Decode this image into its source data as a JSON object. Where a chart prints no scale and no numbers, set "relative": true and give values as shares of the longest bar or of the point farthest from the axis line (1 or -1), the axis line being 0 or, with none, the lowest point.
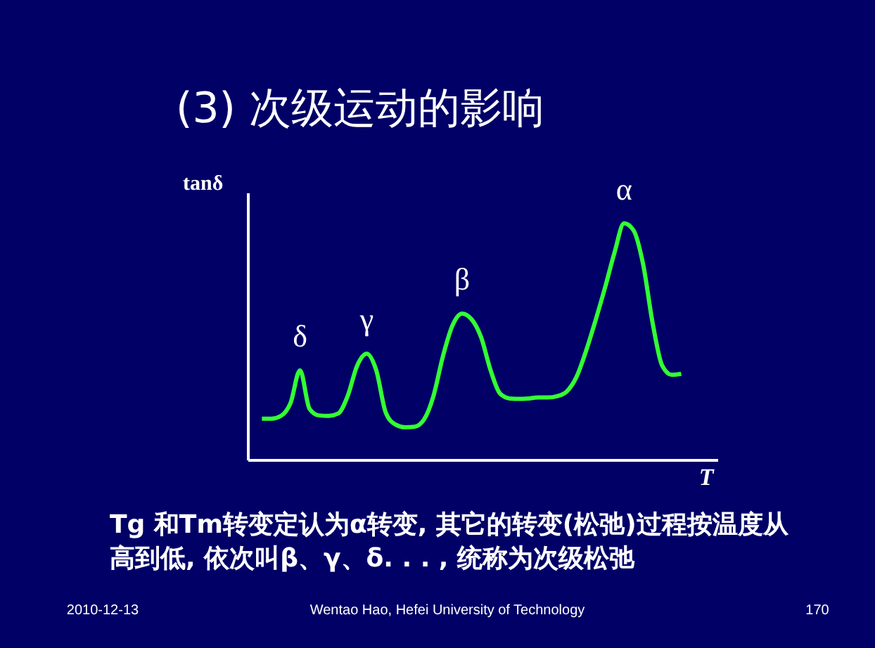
{
  "chart_data": {
    "type": "line",
    "relative": true,
    "title": "(3) 次级运动的影响",
    "xlabel": "T",
    "ylabel": "tanδ",
    "categories": [
      null,
      null,
      null,
      null,
      null,
      null,
      null,
      null,
      null,
      null,
      null,
      null,
      null,
      null,
      null,
      null,
      null,
      null,
      null,
      null,
      null,
      null,
      null,
      null,
      null,
      null,
      null,
      null,
      null,
      null,
      null,
      null,
      null,
      null,
      null,
      null,
      null,
      null,
      null,
      null,
      null,
      null,
      null,
      null,
      null
    ],
    "series": [
      {
        "color": "#33ff33",
        "values": [
          0.173,
          0.173,
          0.185,
          0.239,
          0.378,
          0.215,
          0.187,
          0.185,
          0.195,
          0.269,
          0.398,
          0.448,
          0.378,
          0.199,
          0.149,
          0.137,
          0.139,
          0.169,
          0.269,
          0.438,
          0.568,
          0.618,
          0.594,
          0.518,
          0.378,
          0.279,
          0.259,
          0.257,
          0.259,
          0.263,
          0.263,
          0.269,
          0.289,
          0.349,
          0.458,
          0.588,
          0.727,
          0.876,
          1.0,
          0.97,
          0.827,
          0.578,
          0.398,
          0.359,
          0.363
        ]
      }
    ],
    "annotations": [
      "δ",
      "γ",
      "β",
      "α",
      "Tg 和Tm转变定认为α转变, 其它的转变(松弛)过程按温度从高到低, 依次叫β、γ、δ. . . ,  统称为次级松弛",
      "2010-12-13",
      "Wentao Hao, Hefei University of Technology",
      "170"
    ],
    "grid": false,
    "marker": "none",
    "line_style": "solid"
  }
}
